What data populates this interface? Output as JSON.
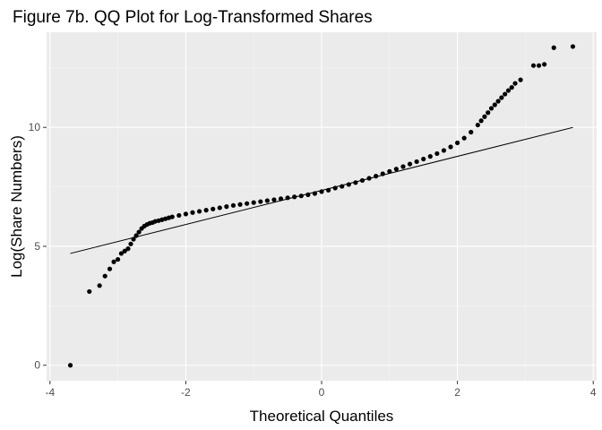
{
  "chart_data": {
    "type": "scatter",
    "title": "Figure 7b. QQ Plot for Log-Transformed Shares",
    "xlabel": "Theoretical Quantiles",
    "ylabel": "Log(Share Numbers)",
    "xlim": [
      -4.05,
      4.05
    ],
    "ylim": [
      -0.65,
      14.0
    ],
    "x_ticks": [
      -4,
      -2,
      0,
      2,
      4
    ],
    "x_tick_labels": [
      "-4",
      "-2",
      "0",
      "2",
      "4"
    ],
    "y_ticks": [
      0,
      5,
      10
    ],
    "y_tick_labels": [
      "0",
      "5",
      "10"
    ],
    "grid": true,
    "legend": "none",
    "colors": {
      "panel_background": "#ebebeb",
      "grid_major": "#ffffff",
      "grid_minor": "#f5f5f5",
      "points": "#000000",
      "reference_line": "#000000"
    },
    "reference_line": {
      "x": [
        -3.7,
        3.7
      ],
      "y": [
        4.7,
        10.0
      ]
    },
    "series": [
      {
        "x": [
          -3.7,
          -3.42,
          -3.27,
          -3.19,
          -3.12,
          -3.06,
          -3.0,
          -2.95,
          -2.9,
          -2.85,
          -2.81,
          -2.77,
          -2.73,
          -2.69,
          -2.65,
          -2.61,
          -2.57,
          -2.53,
          -2.49,
          -2.45,
          -2.4,
          -2.35,
          -2.3,
          -2.25,
          -2.2,
          -2.1,
          -2.0,
          -1.9,
          -1.8,
          -1.7,
          -1.6,
          -1.5,
          -1.4,
          -1.3,
          -1.2,
          -1.1,
          -1.0,
          -0.9,
          -0.8,
          -0.7,
          -0.6,
          -0.5,
          -0.4,
          -0.3,
          -0.2,
          -0.1,
          0.0,
          0.1,
          0.2,
          0.3,
          0.4,
          0.5,
          0.6,
          0.7,
          0.8,
          0.9,
          1.0,
          1.1,
          1.2,
          1.3,
          1.4,
          1.5,
          1.6,
          1.7,
          1.8,
          1.9,
          2.0,
          2.1,
          2.2,
          2.3,
          2.35,
          2.4,
          2.45,
          2.5,
          2.55,
          2.6,
          2.65,
          2.7,
          2.75,
          2.8,
          2.85,
          2.93,
          3.12,
          3.2,
          3.28,
          3.42,
          3.7
        ],
        "y": [
          0.0,
          3.1,
          3.35,
          3.75,
          4.05,
          4.35,
          4.45,
          4.7,
          4.8,
          4.9,
          5.1,
          5.3,
          5.45,
          5.6,
          5.75,
          5.85,
          5.92,
          5.97,
          6.0,
          6.05,
          6.08,
          6.12,
          6.16,
          6.2,
          6.24,
          6.3,
          6.36,
          6.42,
          6.47,
          6.52,
          6.57,
          6.62,
          6.67,
          6.72,
          6.76,
          6.8,
          6.84,
          6.88,
          6.92,
          6.96,
          7.0,
          7.04,
          7.08,
          7.12,
          7.17,
          7.22,
          7.3,
          7.36,
          7.45,
          7.52,
          7.6,
          7.68,
          7.77,
          7.86,
          7.95,
          8.05,
          8.15,
          8.25,
          8.35,
          8.46,
          8.56,
          8.67,
          8.78,
          8.9,
          9.03,
          9.18,
          9.35,
          9.55,
          9.8,
          10.1,
          10.28,
          10.45,
          10.62,
          10.8,
          10.95,
          11.1,
          11.25,
          11.4,
          11.55,
          11.68,
          11.85,
          12.0,
          12.6,
          12.6,
          12.65,
          13.35,
          13.4
        ]
      }
    ]
  }
}
